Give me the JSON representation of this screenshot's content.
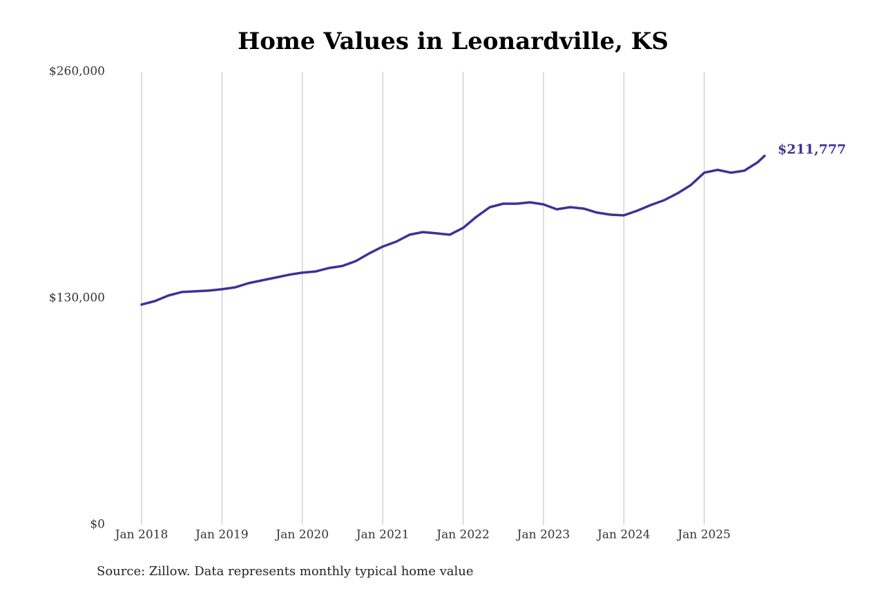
{
  "chart_data": {
    "type": "line",
    "title": "Home Values in Leonardville, KS",
    "source": "Source: Zillow. Data represents monthly typical home value",
    "x": [
      "2018-01",
      "2018-03",
      "2018-05",
      "2018-07",
      "2018-09",
      "2018-11",
      "2019-01",
      "2019-03",
      "2019-05",
      "2019-07",
      "2019-09",
      "2019-11",
      "2020-01",
      "2020-03",
      "2020-05",
      "2020-07",
      "2020-09",
      "2020-11",
      "2021-01",
      "2021-03",
      "2021-05",
      "2021-07",
      "2021-09",
      "2021-11",
      "2022-01",
      "2022-03",
      "2022-05",
      "2022-07",
      "2022-09",
      "2022-11",
      "2023-01",
      "2023-03",
      "2023-05",
      "2023-07",
      "2023-09",
      "2023-11",
      "2024-01",
      "2024-03",
      "2024-05",
      "2024-07",
      "2024-09",
      "2024-11",
      "2025-01",
      "2025-03",
      "2025-05",
      "2025-07",
      "2025-09",
      "2025-10"
    ],
    "series": [
      {
        "name": "Home value",
        "color": "#3b3494",
        "values": [
          126400,
          128400,
          131600,
          133600,
          134000,
          134400,
          135200,
          136300,
          138700,
          140300,
          141900,
          143500,
          144700,
          145400,
          147400,
          148600,
          151400,
          155800,
          159700,
          162500,
          166500,
          168000,
          167300,
          166500,
          170400,
          176800,
          182300,
          184300,
          184300,
          185100,
          183900,
          181100,
          182300,
          181500,
          179200,
          178000,
          177600,
          180300,
          183500,
          186300,
          190200,
          195000,
          202100,
          203700,
          202100,
          203300,
          208100,
          211777
        ],
        "value_labels": [
          null,
          null,
          null,
          null,
          null,
          null,
          null,
          null,
          null,
          null,
          null,
          null,
          null,
          null,
          null,
          null,
          null,
          null,
          null,
          null,
          null,
          null,
          null,
          null,
          null,
          null,
          null,
          null,
          null,
          null,
          null,
          null,
          null,
          null,
          null,
          null,
          null,
          null,
          null,
          null,
          null,
          null,
          null,
          null,
          null,
          null,
          null,
          "$211,777"
        ]
      }
    ],
    "xlim": [
      "2018-01",
      "2025-10"
    ],
    "xticks": [
      {
        "value": "2018-01",
        "label": "Jan 2018"
      },
      {
        "value": "2019-01",
        "label": "Jan 2019"
      },
      {
        "value": "2020-01",
        "label": "Jan 2020"
      },
      {
        "value": "2021-01",
        "label": "Jan 2021"
      },
      {
        "value": "2022-01",
        "label": "Jan 2022"
      },
      {
        "value": "2023-01",
        "label": "Jan 2023"
      },
      {
        "value": "2024-01",
        "label": "Jan 2024"
      },
      {
        "value": "2025-01",
        "label": "Jan 2025"
      }
    ],
    "ylim": [
      0,
      260000
    ],
    "yticks": [
      {
        "value": 0,
        "label": "$0"
      },
      {
        "value": 130000,
        "label": "$130,000"
      },
      {
        "value": 260000,
        "label": "$260,000"
      }
    ],
    "grid": "x"
  }
}
